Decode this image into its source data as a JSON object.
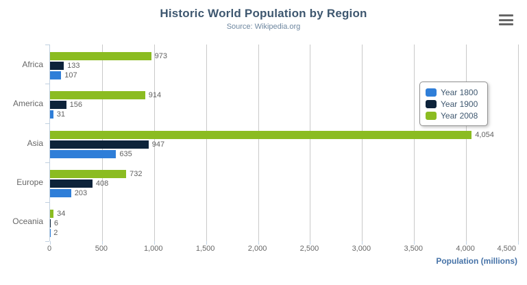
{
  "header": {
    "title": "Historic World Population by Region",
    "subtitle": "Source: Wikipedia.org"
  },
  "export_menu": {
    "icon": "hamburger-menu-icon"
  },
  "chart_data": {
    "type": "bar",
    "orientation": "horizontal",
    "title": "Historic World Population by Region",
    "subtitle": "Source: Wikipedia.org",
    "categories": [
      "Africa",
      "America",
      "Asia",
      "Europe",
      "Oceania"
    ],
    "series": [
      {
        "name": "Year 1800",
        "color": "#2F7ED8",
        "values": [
          107,
          31,
          635,
          203,
          2
        ]
      },
      {
        "name": "Year 1900",
        "color": "#0D233A",
        "values": [
          133,
          156,
          947,
          408,
          6
        ]
      },
      {
        "name": "Year 2008",
        "color": "#8BBC21",
        "values": [
          973,
          914,
          4054,
          732,
          34
        ]
      }
    ],
    "series_render_order_top_to_bottom": [
      "Year 2008",
      "Year 1900",
      "Year 1800"
    ],
    "data_labels": [
      "973",
      "133",
      "107",
      "914",
      "156",
      "31",
      "4,054",
      "947",
      "635",
      "732",
      "408",
      "203",
      "34",
      "6",
      "2"
    ],
    "xlabel": "Population (millions)",
    "xlim": [
      0,
      4500
    ],
    "tick_interval": 500,
    "x_tick_labels": [
      "0",
      "500",
      "1,000",
      "1,500",
      "2,000",
      "2,500",
      "3,000",
      "3,500",
      "4,000",
      "4,500"
    ],
    "grid": "vertical-only",
    "legend": {
      "position": "middle-right",
      "entries": [
        "Year 1800",
        "Year 1900",
        "Year 2008"
      ]
    }
  }
}
